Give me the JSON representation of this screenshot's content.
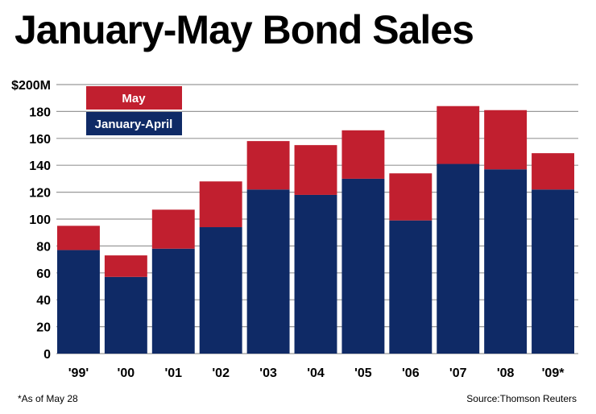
{
  "chart_data": {
    "type": "bar",
    "stacked": true,
    "title": "January-May Bond Sales",
    "xlabel": "",
    "ylabel": "",
    "ylim": [
      0,
      200
    ],
    "yticks": [
      0,
      20,
      40,
      60,
      80,
      100,
      120,
      140,
      160,
      180,
      200
    ],
    "ytick_labels": [
      "0",
      "20",
      "40",
      "60",
      "80",
      "100",
      "120",
      "140",
      "160",
      "180",
      "$200M"
    ],
    "grid": true,
    "legend_position": "top-left",
    "categories": [
      "'99'",
      "'00",
      "'01",
      "'02",
      "'03",
      "'04",
      "'05",
      "'06",
      "'07",
      "'08",
      "'09*"
    ],
    "series": [
      {
        "name": "January-April",
        "color": "#0f2a66",
        "values": [
          77,
          57,
          78,
          94,
          122,
          118,
          130,
          99,
          141,
          137,
          122
        ]
      },
      {
        "name": "May",
        "color": "#c11f2f",
        "values": [
          18,
          16,
          29,
          34,
          36,
          37,
          36,
          35,
          43,
          44,
          27
        ]
      }
    ],
    "footnote": "*As of May 28",
    "source": "Source:Thomson Reuters"
  }
}
